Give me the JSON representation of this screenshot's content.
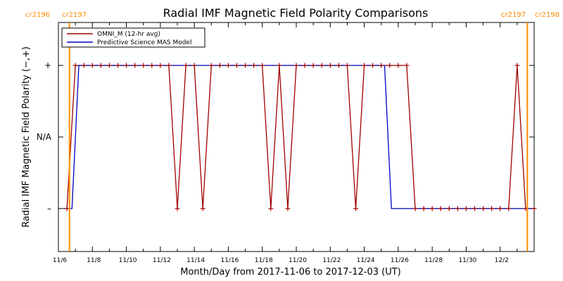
{
  "chart_data": {
    "type": "line",
    "title": "Radial IMF Magnetic Field Polarity Comparisons",
    "xlabel": "Month/Day from 2017-11-06 to 2017-12-03 (UT)",
    "ylabel": "Radial IMF Magnetic Field Polarity (−,+)",
    "x_unit": "days",
    "xlim": [
      0,
      28
    ],
    "ylim": [
      -1.6,
      1.6
    ],
    "y_ticks": [
      {
        "value": 1,
        "label": "+"
      },
      {
        "value": 0,
        "label": "N/A"
      },
      {
        "value": -1,
        "label": "–"
      }
    ],
    "x_ticks": [
      {
        "value": 0,
        "label": "11/6"
      },
      {
        "value": 2,
        "label": "11/8"
      },
      {
        "value": 4,
        "label": "11/10"
      },
      {
        "value": 6,
        "label": "11/12"
      },
      {
        "value": 8,
        "label": "11/14"
      },
      {
        "value": 10,
        "label": "11/16"
      },
      {
        "value": 12,
        "label": "11/18"
      },
      {
        "value": 14,
        "label": "11/20"
      },
      {
        "value": 16,
        "label": "11/22"
      },
      {
        "value": 18,
        "label": "11/24"
      },
      {
        "value": 20,
        "label": "11/26"
      },
      {
        "value": 22,
        "label": "11/28"
      },
      {
        "value": 24,
        "label": "11/30"
      },
      {
        "value": 26,
        "label": "12/2"
      }
    ],
    "grid": false,
    "legend_position": "top-left",
    "carrington_markers": [
      {
        "x": 0.65,
        "left_label": "cr2196",
        "right_label": "cr2197"
      },
      {
        "x": 27.6,
        "left_label": "cr2197",
        "right_label": "cr2198"
      }
    ],
    "series": [
      {
        "name": "OMNI_M (12-hr avg)",
        "color": "#a00000",
        "x": [
          0.5,
          1.0,
          1.5,
          2.0,
          2.5,
          3.0,
          3.5,
          4.0,
          4.5,
          5.0,
          5.5,
          6.0,
          6.5,
          7.0,
          7.5,
          8.0,
          8.5,
          9.0,
          9.5,
          10.0,
          10.5,
          11.0,
          11.5,
          12.0,
          12.5,
          13.0,
          13.5,
          14.0,
          14.5,
          15.0,
          15.5,
          16.0,
          16.5,
          17.0,
          17.5,
          18.0,
          18.5,
          19.0,
          19.5,
          20.0,
          20.5,
          21.0,
          21.5,
          22.0,
          22.5,
          23.0,
          23.5,
          24.0,
          24.5,
          25.0,
          25.5,
          26.0,
          26.5,
          27.0,
          27.5,
          28.0
        ],
        "y": [
          -1,
          1,
          1,
          1,
          1,
          1,
          1,
          1,
          1,
          1,
          1,
          1,
          1,
          -1,
          1,
          1,
          -1,
          1,
          1,
          1,
          1,
          1,
          1,
          1,
          -1,
          1,
          -1,
          1,
          1,
          1,
          1,
          1,
          1,
          1,
          -1,
          1,
          1,
          1,
          1,
          1,
          1,
          -1,
          -1,
          -1,
          -1,
          -1,
          -1,
          -1,
          -1,
          -1,
          -1,
          -1,
          -1,
          1,
          -1,
          -1
        ]
      },
      {
        "name": "Predictive Science MAS Model",
        "color": "#0000c0",
        "x": [
          0.3,
          0.8,
          1.2,
          19.2,
          19.6,
          28.0
        ],
        "y": [
          -1,
          -1,
          1,
          1,
          -1,
          -1
        ]
      }
    ]
  }
}
